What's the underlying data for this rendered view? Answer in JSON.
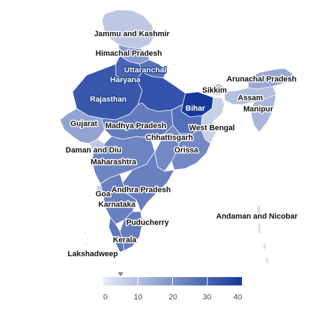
{
  "map": {
    "regions": [
      {
        "id": "jk",
        "label": "Jammu and Kashmir",
        "value": 8
      },
      {
        "id": "hp",
        "label": "Himachal Pradesh",
        "value": 18
      },
      {
        "id": "uk",
        "label": "Uttaranchal",
        "value": 27
      },
      {
        "id": "hr",
        "label": "Haryana",
        "value": 30
      },
      {
        "id": "rj",
        "label": "Rajasthan",
        "value": 33
      },
      {
        "id": "up",
        "label": "",
        "value": 34
      },
      {
        "id": "br",
        "label": "Bihar",
        "value": 40
      },
      {
        "id": "sk",
        "label": "Sikkim",
        "value": 12
      },
      {
        "id": "ar",
        "label": "Arunachal Pradesh",
        "value": 15
      },
      {
        "id": "as",
        "label": "Assam",
        "value": 10
      },
      {
        "id": "mn",
        "label": "Manipur",
        "value": 12
      },
      {
        "id": "wb",
        "label": "West Bengal",
        "value": 6
      },
      {
        "id": "jh",
        "label": "",
        "value": 28
      },
      {
        "id": "gj",
        "label": "Gujarat",
        "value": 16
      },
      {
        "id": "mp",
        "label": "Madhya Pradesh",
        "value": 25
      },
      {
        "id": "cg",
        "label": "Chhattisgarh",
        "value": 22
      },
      {
        "id": "or",
        "label": "Orissa",
        "value": 22
      },
      {
        "id": "dd",
        "label": "Daman and Diu",
        "value": 8
      },
      {
        "id": "mh",
        "label": "Maharashtra",
        "value": 23
      },
      {
        "id": "ap",
        "label": "Andhra Pradesh",
        "value": 24
      },
      {
        "id": "ga",
        "label": "Goa",
        "value": 7
      },
      {
        "id": "ka",
        "label": "Karnataka",
        "value": 24
      },
      {
        "id": "py",
        "label": "Puducherry",
        "value": 24
      },
      {
        "id": "tn",
        "label": "",
        "value": 25
      },
      {
        "id": "kl",
        "label": "Kerala",
        "value": 26
      },
      {
        "id": "ld",
        "label": "Lakshadweep",
        "value": 2
      },
      {
        "id": "an",
        "label": "Andaman and Nicobar",
        "value": 3
      }
    ]
  },
  "legend": {
    "ticks": [
      "0",
      "10",
      "20",
      "30",
      "40"
    ],
    "range": [
      0,
      40
    ],
    "marker_value": 5,
    "color_low": "#e8ecf7",
    "color_high": "#14389c"
  }
}
